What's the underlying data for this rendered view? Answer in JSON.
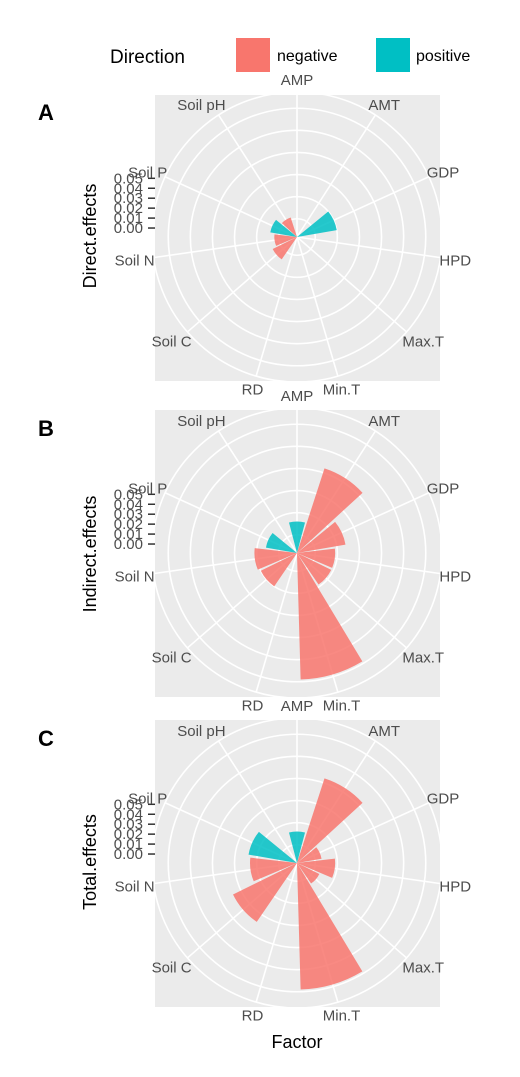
{
  "legend": {
    "title": "Direction",
    "items": [
      {
        "label": "negative",
        "color": "#F8766D"
      },
      {
        "label": "positive",
        "color": "#00BFC4"
      }
    ]
  },
  "x_title": "Factor",
  "chart_data": [
    {
      "type": "polar-bar",
      "panel_tag": "A",
      "ylabel": "Direct.effects",
      "categories": [
        "AMP",
        "AMT",
        "GDP",
        "HPD",
        "Max.T",
        "Min.T",
        "RD",
        "Soil C",
        "Soil N",
        "Soil P",
        "Soil pH"
      ],
      "ticks": [
        "0.00",
        "0.01",
        "0.02",
        "0.03",
        "0.04",
        "0.05"
      ],
      "ylim": [
        -0.006,
        0.054
      ],
      "values": [
        0.0,
        0.0,
        0.01,
        0.0,
        0.0,
        0.0,
        0.0,
        0.004,
        0.002,
        0.004,
        0.001
      ],
      "directions": [
        "positive",
        "positive",
        "positive",
        "positive",
        "positive",
        "positive",
        "positive",
        "negative",
        "negative",
        "positive",
        "negative"
      ]
    },
    {
      "type": "polar-bar",
      "panel_tag": "B",
      "ylabel": "Indirect.effects",
      "categories": [
        "AMP",
        "AMT",
        "GDP",
        "HPD",
        "Max.T",
        "Min.T",
        "RD",
        "Soil C",
        "Soil N",
        "Soil P",
        "Soil pH"
      ],
      "ticks": [
        "0.00",
        "0.01",
        "0.02",
        "0.03",
        "0.04",
        "0.05"
      ],
      "ylim": [
        -0.006,
        0.054
      ],
      "values": [
        0.006,
        0.032,
        0.014,
        0.009,
        0.009,
        0.049,
        0.0,
        0.01,
        0.011,
        0.006,
        0.0
      ],
      "directions": [
        "positive",
        "negative",
        "negative",
        "negative",
        "negative",
        "negative",
        "negative",
        "negative",
        "negative",
        "positive",
        "negative"
      ]
    },
    {
      "type": "polar-bar",
      "panel_tag": "C",
      "ylabel": "Total.effects",
      "categories": [
        "AMP",
        "AMT",
        "GDP",
        "HPD",
        "Max.T",
        "Min.T",
        "RD",
        "Soil C",
        "Soil N",
        "Soil P",
        "Soil pH"
      ],
      "ticks": [
        "0.00",
        "0.01",
        "0.02",
        "0.03",
        "0.04",
        "0.05"
      ],
      "ylim": [
        -0.006,
        0.054
      ],
      "values": [
        0.006,
        0.032,
        0.003,
        0.009,
        0.003,
        0.049,
        0.0,
        0.024,
        0.013,
        0.014,
        0.0
      ],
      "directions": [
        "positive",
        "negative",
        "negative",
        "negative",
        "negative",
        "negative",
        "negative",
        "negative",
        "negative",
        "positive",
        "negative"
      ]
    }
  ]
}
